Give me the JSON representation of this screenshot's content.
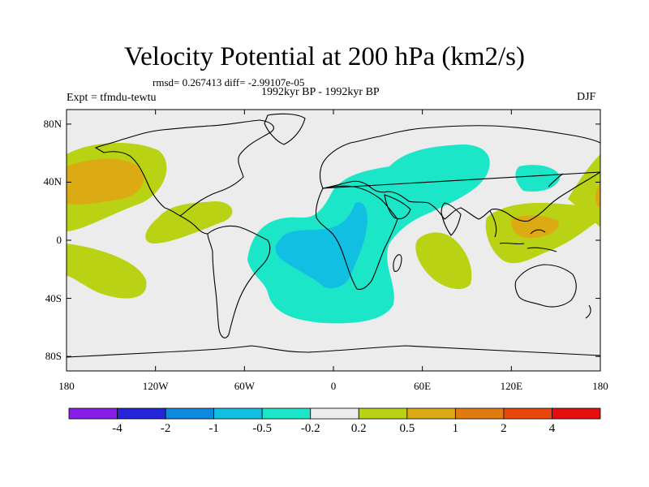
{
  "title": "Velocity Potential at 200 hPa (km2/s)",
  "stats_line": "rmsd= 0.267413 diff= -2.99107e-05",
  "experiment_label": "Expt = tfmdu-tewtu",
  "period_label": "1992kyr BP - 1992kyr BP",
  "season_label": "DJF",
  "map": {
    "projection": "cylindrical equidistant",
    "lon_range": [
      -180,
      180
    ],
    "lat_range": [
      -90,
      90
    ],
    "lat_ticks": [
      {
        "value": 80,
        "label": "80N"
      },
      {
        "value": 40,
        "label": "40N"
      },
      {
        "value": 0,
        "label": "0"
      },
      {
        "value": -40,
        "label": "40S"
      },
      {
        "value": -80,
        "label": "80S"
      }
    ],
    "lon_ticks": [
      {
        "value": -180,
        "label": "180"
      },
      {
        "value": -120,
        "label": "120W"
      },
      {
        "value": -60,
        "label": "60W"
      },
      {
        "value": 0,
        "label": "0"
      },
      {
        "value": 60,
        "label": "60E"
      },
      {
        "value": 120,
        "label": "120E"
      },
      {
        "value": 180,
        "label": "180"
      }
    ],
    "background_color": "#ececec",
    "anomaly_regions": [
      {
        "level": "0.2 to 0.5",
        "region": "North Pacific",
        "color": "#b9d213"
      },
      {
        "level": "0.5 to 1",
        "region": "North Pacific core",
        "color": "#dcab13"
      },
      {
        "level": "0.2 to 0.5",
        "region": "Caribbean / tropical Atlantic",
        "color": "#b9d213"
      },
      {
        "level": "0.2 to 0.5",
        "region": "Southeast Pacific",
        "color": "#b9d213"
      },
      {
        "level": "-0.5 to -0.2",
        "region": "South Atlantic / Africa / Eurasia",
        "color": "#1ce6c8"
      },
      {
        "level": "-1 to -0.5",
        "region": "South Atlantic core",
        "color": "#11bfe3"
      },
      {
        "level": "0.2 to 0.5",
        "region": "Indian Ocean",
        "color": "#b9d213"
      },
      {
        "level": "0.2 to 0.5",
        "region": "Maritime Continent / West Pacific",
        "color": "#b9d213"
      },
      {
        "level": "0.5 to 1",
        "region": "Philippines",
        "color": "#dcab13"
      }
    ]
  },
  "colorbar": {
    "colors": [
      "#8a1ee6",
      "#2626d9",
      "#0d8ae0",
      "#11bfe3",
      "#1ce6c8",
      "#ececec",
      "#b9d213",
      "#dcab13",
      "#e07b0f",
      "#e8480b",
      "#e60e0e"
    ],
    "labels": [
      "-4",
      "-2",
      "-1",
      "-0.5",
      "-0.2",
      "0.2",
      "0.5",
      "1",
      "2",
      "4"
    ]
  }
}
